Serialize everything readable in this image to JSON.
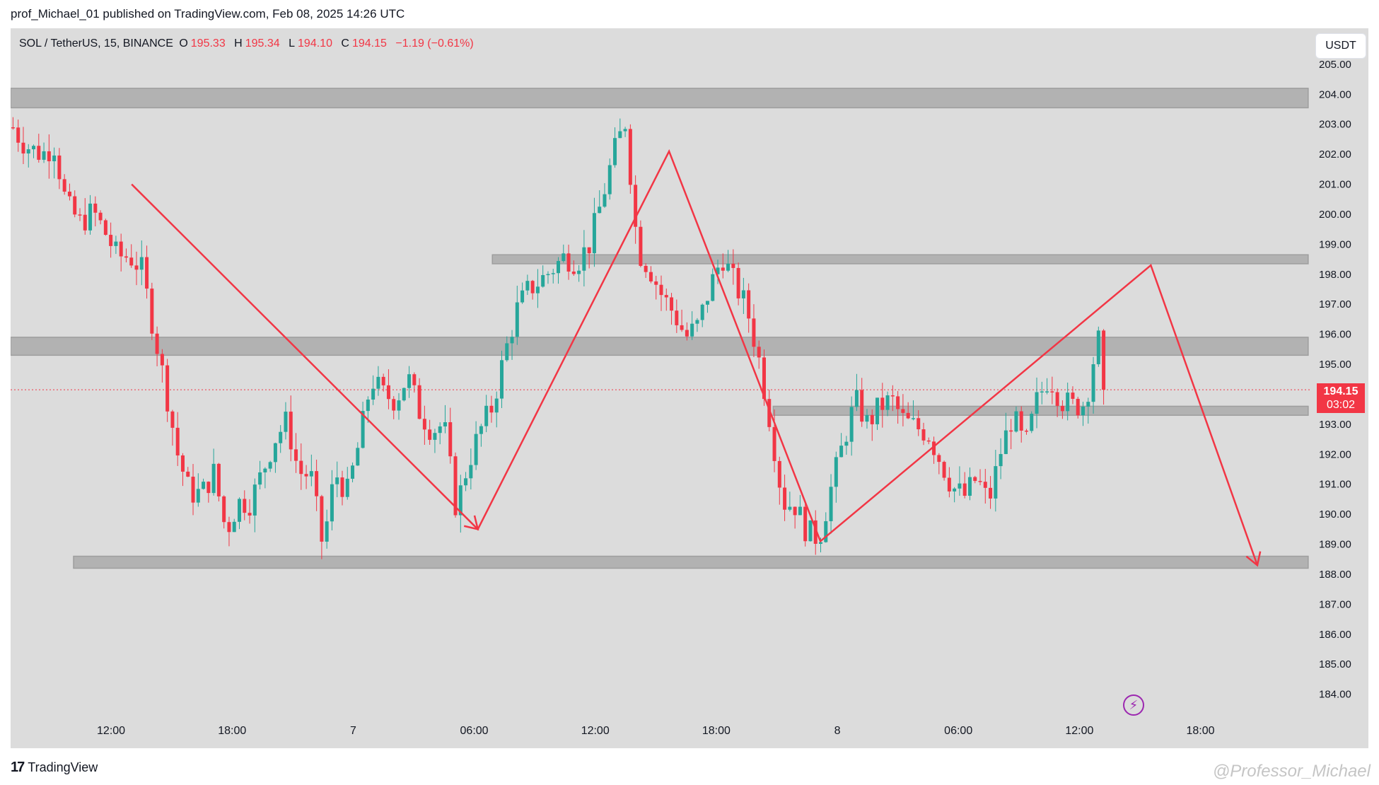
{
  "header": {
    "attribution": "prof_Michael_01 published on TradingView.com, Feb 08, 2025 14:26 UTC"
  },
  "symbol": {
    "name": "SOL / TetherUS, 15, BINANCE",
    "open_label": "O",
    "open_value": "195.33",
    "high_label": "H",
    "high_value": "195.34",
    "low_label": "L",
    "low_value": "194.10",
    "close_label": "C",
    "close_value": "194.15",
    "change": "−1.19 (−0.61%)"
  },
  "currency": "USDT",
  "last_price": {
    "price": "194.15",
    "countdown": "03:02"
  },
  "footer": {
    "logo_text": "TradingView",
    "watermark": "@Professor_Michael"
  },
  "colors": {
    "background": "#dcdcdc",
    "up": "#26a69a",
    "down": "#f23645",
    "zone": "#b2b2b2",
    "arrow": "#f23645",
    "text": "#131722"
  },
  "icons": {
    "flash": "lightning-icon",
    "logo": "tradingview-logo-icon"
  },
  "chart_data": {
    "type": "candlestick",
    "title": "SOL / TetherUS, 15, BINANCE",
    "x_ticks": [
      {
        "t": 1.33,
        "label": "12:00"
      },
      {
        "t": 2.33,
        "label": "18:00"
      },
      {
        "t": 3.33,
        "label": "7"
      },
      {
        "t": 4.33,
        "label": "06:00"
      },
      {
        "t": 5.33,
        "label": "12:00"
      },
      {
        "t": 6.33,
        "label": "18:00"
      },
      {
        "t": 7.33,
        "label": "8"
      },
      {
        "t": 8.33,
        "label": "06:00"
      },
      {
        "t": 9.33,
        "label": "12:00"
      },
      {
        "t": 10.33,
        "label": "18:00"
      }
    ],
    "x_range": [
      0.5,
      11.25
    ],
    "y_ticks": [
      184,
      185,
      186,
      187,
      188,
      189,
      190,
      191,
      192,
      193,
      194,
      195,
      196,
      197,
      198,
      199,
      200,
      201,
      202,
      203,
      204,
      205
    ],
    "y_range": [
      182.2,
      206.2
    ],
    "last_price": 194.15,
    "anchors": [
      [
        0.52,
        202.9
      ],
      [
        0.58,
        202.5
      ],
      [
        0.66,
        202.2
      ],
      [
        0.76,
        202.0
      ],
      [
        0.86,
        202.3
      ],
      [
        0.96,
        200.3
      ],
      [
        1.08,
        199.7
      ],
      [
        1.18,
        200.1
      ],
      [
        1.28,
        199.4
      ],
      [
        1.38,
        198.6
      ],
      [
        1.48,
        198.6
      ],
      [
        1.58,
        198.2
      ],
      [
        1.68,
        196.2
      ],
      [
        1.78,
        194.2
      ],
      [
        1.88,
        192.0
      ],
      [
        1.98,
        190.7
      ],
      [
        2.08,
        190.7
      ],
      [
        2.18,
        191.4
      ],
      [
        2.28,
        189.4
      ],
      [
        2.38,
        190.4
      ],
      [
        2.48,
        190.4
      ],
      [
        2.58,
        191.4
      ],
      [
        2.68,
        192.5
      ],
      [
        2.78,
        193.1
      ],
      [
        2.88,
        191.4
      ],
      [
        2.98,
        191.3
      ],
      [
        3.08,
        188.9
      ],
      [
        3.18,
        191.4
      ],
      [
        3.28,
        190.7
      ],
      [
        3.38,
        192.4
      ],
      [
        3.48,
        194.5
      ],
      [
        3.58,
        194.0
      ],
      [
        3.68,
        193.8
      ],
      [
        3.78,
        194.6
      ],
      [
        3.88,
        193.4
      ],
      [
        3.98,
        192.8
      ],
      [
        4.08,
        193.0
      ],
      [
        4.18,
        190.2
      ],
      [
        4.28,
        191.7
      ],
      [
        4.38,
        192.8
      ],
      [
        4.48,
        193.6
      ],
      [
        4.58,
        195.3
      ],
      [
        4.68,
        196.8
      ],
      [
        4.78,
        197.5
      ],
      [
        4.88,
        197.8
      ],
      [
        4.98,
        198.2
      ],
      [
        5.08,
        198.6
      ],
      [
        5.18,
        198.4
      ],
      [
        5.28,
        199.0
      ],
      [
        5.38,
        200.4
      ],
      [
        5.48,
        202.0
      ],
      [
        5.58,
        203.1
      ],
      [
        5.68,
        198.8
      ],
      [
        5.78,
        198.2
      ],
      [
        5.88,
        197.3
      ],
      [
        5.98,
        196.7
      ],
      [
        6.08,
        195.9
      ],
      [
        6.18,
        196.3
      ],
      [
        6.28,
        197.6
      ],
      [
        6.38,
        198.6
      ],
      [
        6.48,
        197.7
      ],
      [
        6.58,
        196.9
      ],
      [
        6.68,
        195.2
      ],
      [
        6.78,
        193.0
      ],
      [
        6.88,
        190.4
      ],
      [
        6.98,
        190.3
      ],
      [
        7.08,
        189.4
      ],
      [
        7.18,
        189.2
      ],
      [
        7.28,
        190.9
      ],
      [
        7.38,
        192.4
      ],
      [
        7.48,
        193.8
      ],
      [
        7.58,
        193.0
      ],
      [
        7.68,
        193.6
      ],
      [
        7.78,
        193.8
      ],
      [
        7.88,
        193.1
      ],
      [
        7.98,
        192.9
      ],
      [
        8.08,
        192.7
      ],
      [
        8.18,
        191.8
      ],
      [
        8.28,
        190.9
      ],
      [
        8.38,
        190.6
      ],
      [
        8.48,
        191.2
      ],
      [
        8.58,
        190.4
      ],
      [
        8.68,
        192.1
      ],
      [
        8.78,
        193.3
      ],
      [
        8.88,
        192.2
      ],
      [
        8.98,
        193.8
      ],
      [
        9.08,
        194.6
      ],
      [
        9.18,
        193.8
      ],
      [
        9.28,
        193.6
      ],
      [
        9.38,
        193.7
      ],
      [
        9.48,
        195.9
      ],
      [
        9.52,
        195.3
      ],
      [
        9.56,
        194.15
      ]
    ],
    "support_resistance_zones": [
      {
        "x0": 0.5,
        "x1": 11.22,
        "y_low": 203.55,
        "y_high": 204.2
      },
      {
        "x0": 4.48,
        "x1": 11.22,
        "y_low": 198.35,
        "y_high": 198.65
      },
      {
        "x0": 0.5,
        "x1": 11.22,
        "y_low": 195.3,
        "y_high": 195.9
      },
      {
        "x0": 6.8,
        "x1": 11.22,
        "y_low": 193.3,
        "y_high": 193.6
      },
      {
        "x0": 1.02,
        "x1": 11.22,
        "y_low": 188.2,
        "y_high": 188.6
      }
    ],
    "projection_path": [
      [
        1.5,
        201.0
      ],
      [
        4.36,
        189.5
      ],
      [
        5.94,
        202.1
      ],
      [
        7.19,
        189.1
      ],
      [
        9.92,
        198.3
      ],
      [
        10.8,
        188.3
      ]
    ]
  }
}
